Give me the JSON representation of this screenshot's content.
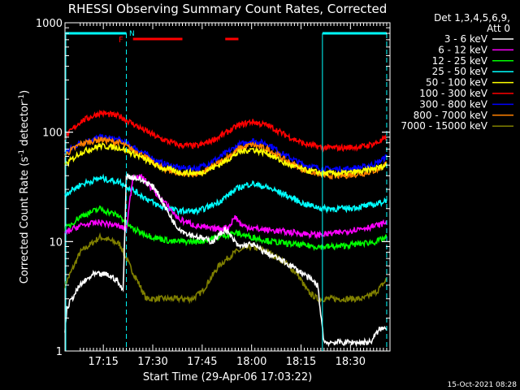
{
  "chart_data": {
    "type": "line",
    "title": "RHESSI Observing Summary Count Rates, Corrected",
    "xlabel": "Start Time (29-Apr-06 17:03:22)",
    "ylabel": "Corrected Count Rate (s-1 detector-1)",
    "ylabel_parts": {
      "main": "Corrected Count Rate (s",
      "sup1": "-1",
      "mid": " detector",
      "sup2": "-1",
      "end": ")"
    },
    "y_scale": "log",
    "ylim": [
      1,
      1000
    ],
    "xlim": [
      "17:03:22",
      "18:42:00"
    ],
    "x_ticks": [
      "17:15",
      "17:30",
      "17:45",
      "18:00",
      "18:15",
      "18:30"
    ],
    "y_ticks": [
      "1",
      "10",
      "100",
      "1000"
    ],
    "legend_title": [
      "Det 1,3,4,5,6,9,",
      "Att 0"
    ],
    "legend_placement": "right",
    "grid": false,
    "series": [
      {
        "name": "3 - 6 keV",
        "color": "#ffffff",
        "points": [
          [
            "17:03:22",
            1.5
          ],
          [
            "17:04:00",
            2.5
          ],
          [
            "17:06:00",
            3.2
          ],
          [
            "17:08:00",
            4
          ],
          [
            "17:12:00",
            5
          ],
          [
            "17:16:00",
            5
          ],
          [
            "17:19:00",
            4.5
          ],
          [
            "17:21:00",
            3.5
          ],
          [
            "17:22:00",
            40
          ],
          [
            "17:25:00",
            38
          ],
          [
            "17:28:00",
            35
          ],
          [
            "17:31:00",
            30
          ],
          [
            "17:34:00",
            20
          ],
          [
            "17:37:00",
            14
          ],
          [
            "17:40:00",
            12
          ],
          [
            "17:44:00",
            11
          ],
          [
            "17:48:00",
            10
          ],
          [
            "17:52:00",
            13
          ],
          [
            "17:56:00",
            9
          ],
          [
            "18:00:00",
            9.5
          ],
          [
            "18:04:00",
            8
          ],
          [
            "18:08:00",
            7
          ],
          [
            "18:12:00",
            6
          ],
          [
            "18:16:00",
            5
          ],
          [
            "18:20:00",
            4
          ],
          [
            "18:22:00",
            1.2
          ],
          [
            "18:25:00",
            1.2
          ],
          [
            "18:30:00",
            1.2
          ],
          [
            "18:36:00",
            1.2
          ],
          [
            "18:39:00",
            1.6
          ],
          [
            "18:41:00",
            1.6
          ]
        ]
      },
      {
        "name": "6 - 12 keV",
        "color": "#ff00ff",
        "points": [
          [
            "17:03:22",
            12
          ],
          [
            "17:08:00",
            14
          ],
          [
            "17:14:00",
            15
          ],
          [
            "17:19:00",
            14
          ],
          [
            "17:22:00",
            13
          ],
          [
            "17:24:00",
            40
          ],
          [
            "17:27:00",
            38
          ],
          [
            "17:30:00",
            30
          ],
          [
            "17:34:00",
            22
          ],
          [
            "17:38:00",
            16
          ],
          [
            "17:43:00",
            14
          ],
          [
            "17:48:00",
            13
          ],
          [
            "17:53:00",
            13.5
          ],
          [
            "17:55:00",
            17
          ],
          [
            "17:57:00",
            14
          ],
          [
            "18:02:00",
            13
          ],
          [
            "18:08:00",
            12.5
          ],
          [
            "18:14:00",
            12
          ],
          [
            "18:20:00",
            11.5
          ],
          [
            "18:26:00",
            12
          ],
          [
            "18:32:00",
            13
          ],
          [
            "18:38:00",
            14
          ],
          [
            "18:41:00",
            15
          ]
        ]
      },
      {
        "name": "12 - 25 keV",
        "color": "#00ff00",
        "points": [
          [
            "17:03:22",
            13
          ],
          [
            "17:08:00",
            17
          ],
          [
            "17:14:00",
            20
          ],
          [
            "17:20:00",
            17
          ],
          [
            "17:24:00",
            13
          ],
          [
            "17:30:00",
            11
          ],
          [
            "17:36:00",
            10
          ],
          [
            "17:44:00",
            10
          ],
          [
            "17:50:00",
            11
          ],
          [
            "17:55:00",
            12
          ],
          [
            "18:00:00",
            11
          ],
          [
            "18:06:00",
            10
          ],
          [
            "18:12:00",
            9.5
          ],
          [
            "18:20:00",
            9
          ],
          [
            "18:26:00",
            9
          ],
          [
            "18:32:00",
            9.5
          ],
          [
            "18:38:00",
            10
          ],
          [
            "18:41:00",
            11
          ]
        ]
      },
      {
        "name": "25 - 50 keV",
        "color": "#00ffff",
        "points": [
          [
            "17:03:22",
            27
          ],
          [
            "17:08:00",
            33
          ],
          [
            "17:14:00",
            38
          ],
          [
            "17:20:00",
            35
          ],
          [
            "17:26:00",
            27
          ],
          [
            "17:32:00",
            21
          ],
          [
            "17:38:00",
            19
          ],
          [
            "17:44:00",
            19
          ],
          [
            "17:50:00",
            23
          ],
          [
            "17:56:00",
            31
          ],
          [
            "18:00:00",
            34
          ],
          [
            "18:05:00",
            31
          ],
          [
            "18:10:00",
            27
          ],
          [
            "18:16:00",
            22
          ],
          [
            "18:22:00",
            20
          ],
          [
            "18:28:00",
            20
          ],
          [
            "18:34:00",
            21
          ],
          [
            "18:38:00",
            22
          ],
          [
            "18:41:00",
            24
          ]
        ]
      },
      {
        "name": "50 - 100 keV",
        "color": "#ffff00",
        "points": [
          [
            "17:03:22",
            50
          ],
          [
            "17:08:00",
            65
          ],
          [
            "17:14:00",
            75
          ],
          [
            "17:20:00",
            72
          ],
          [
            "17:26:00",
            60
          ],
          [
            "17:32:00",
            48
          ],
          [
            "17:38:00",
            43
          ],
          [
            "17:44:00",
            42
          ],
          [
            "17:50:00",
            50
          ],
          [
            "17:56:00",
            65
          ],
          [
            "18:00:00",
            70
          ],
          [
            "18:05:00",
            64
          ],
          [
            "18:10:00",
            52
          ],
          [
            "18:16:00",
            45
          ],
          [
            "18:22:00",
            42
          ],
          [
            "18:28:00",
            42
          ],
          [
            "18:34:00",
            44
          ],
          [
            "18:38:00",
            47
          ],
          [
            "18:41:00",
            50
          ]
        ]
      },
      {
        "name": "100 - 300 keV",
        "color": "#ff0000",
        "points": [
          [
            "17:03:22",
            90
          ],
          [
            "17:08:00",
            125
          ],
          [
            "17:14:00",
            150
          ],
          [
            "17:20:00",
            140
          ],
          [
            "17:26:00",
            110
          ],
          [
            "17:32:00",
            88
          ],
          [
            "17:38:00",
            76
          ],
          [
            "17:44:00",
            75
          ],
          [
            "17:50:00",
            90
          ],
          [
            "17:56:00",
            115
          ],
          [
            "18:00:00",
            125
          ],
          [
            "18:05:00",
            115
          ],
          [
            "18:10:00",
            95
          ],
          [
            "18:16:00",
            78
          ],
          [
            "18:22:00",
            72
          ],
          [
            "18:28:00",
            72
          ],
          [
            "18:34:00",
            74
          ],
          [
            "18:38:00",
            80
          ],
          [
            "18:41:00",
            88
          ]
        ]
      },
      {
        "name": "300 - 800 keV",
        "color": "#0000ff",
        "points": [
          [
            "17:03:22",
            65
          ],
          [
            "17:08:00",
            80
          ],
          [
            "17:14:00",
            90
          ],
          [
            "17:20:00",
            85
          ],
          [
            "17:26:00",
            68
          ],
          [
            "17:32:00",
            53
          ],
          [
            "17:38:00",
            47
          ],
          [
            "17:44:00",
            47
          ],
          [
            "17:50:00",
            58
          ],
          [
            "17:56:00",
            76
          ],
          [
            "18:00:00",
            84
          ],
          [
            "18:05:00",
            78
          ],
          [
            "18:10:00",
            62
          ],
          [
            "18:16:00",
            50
          ],
          [
            "18:22:00",
            46
          ],
          [
            "18:28:00",
            46
          ],
          [
            "18:34:00",
            48
          ],
          [
            "18:38:00",
            52
          ],
          [
            "18:41:00",
            60
          ]
        ]
      },
      {
        "name": "800 - 7000 keV",
        "color": "#ff8000",
        "points": [
          [
            "17:03:22",
            62
          ],
          [
            "17:08:00",
            78
          ],
          [
            "17:14:00",
            86
          ],
          [
            "17:20:00",
            80
          ],
          [
            "17:26:00",
            64
          ],
          [
            "17:32:00",
            48
          ],
          [
            "17:38:00",
            42
          ],
          [
            "17:44:00",
            41
          ],
          [
            "17:50:00",
            52
          ],
          [
            "17:56:00",
            70
          ],
          [
            "18:00:00",
            77
          ],
          [
            "18:05:00",
            70
          ],
          [
            "18:10:00",
            56
          ],
          [
            "18:16:00",
            45
          ],
          [
            "18:22:00",
            40
          ],
          [
            "18:28:00",
            40
          ],
          [
            "18:34:00",
            42
          ],
          [
            "18:38:00",
            45
          ],
          [
            "18:41:00",
            52
          ]
        ]
      },
      {
        "name": "7000 - 15000 keV",
        "color": "#808000",
        "points": [
          [
            "17:03:22",
            4
          ],
          [
            "17:08:00",
            8
          ],
          [
            "17:14:00",
            11
          ],
          [
            "17:20:00",
            9.5
          ],
          [
            "17:23:00",
            6
          ],
          [
            "17:26:00",
            4
          ],
          [
            "17:28:00",
            3
          ],
          [
            "17:36:00",
            3
          ],
          [
            "17:42:00",
            3
          ],
          [
            "17:45:00",
            3.5
          ],
          [
            "17:50:00",
            6
          ],
          [
            "17:55:00",
            8
          ],
          [
            "18:00:00",
            9
          ],
          [
            "18:05:00",
            8
          ],
          [
            "18:10:00",
            6.5
          ],
          [
            "18:14:00",
            5
          ],
          [
            "18:17:00",
            3.5
          ],
          [
            "18:20:00",
            3
          ],
          [
            "18:34:00",
            3
          ],
          [
            "18:38:00",
            3.5
          ],
          [
            "18:41:00",
            4.5
          ]
        ]
      }
    ],
    "annotations": {
      "flag_labels": [
        {
          "text": "F",
          "color": "#ff0000"
        },
        {
          "text": "N",
          "color": "#00ffff"
        }
      ],
      "flag_bars": [
        {
          "color": "#00ffff",
          "from": "17:03:22",
          "to": "17:22:00"
        },
        {
          "color": "#ff0000",
          "from": "17:24:00",
          "to": "17:39:00"
        },
        {
          "color": "#ff0000",
          "from": "17:52:00",
          "to": "17:56:00"
        },
        {
          "color": "#00ffff",
          "from": "18:21:30",
          "to": "18:41:00"
        }
      ],
      "vlines_solid": [
        {
          "color": "#00ffff",
          "x": "18:21:30"
        }
      ],
      "vlines_dashed": [
        {
          "color": "#00ffff",
          "x": "17:22:00"
        },
        {
          "color": "#00ffff",
          "x": "18:41:00"
        }
      ]
    }
  },
  "footer": {
    "timestamp": "15-Oct-2021 08:28"
  }
}
